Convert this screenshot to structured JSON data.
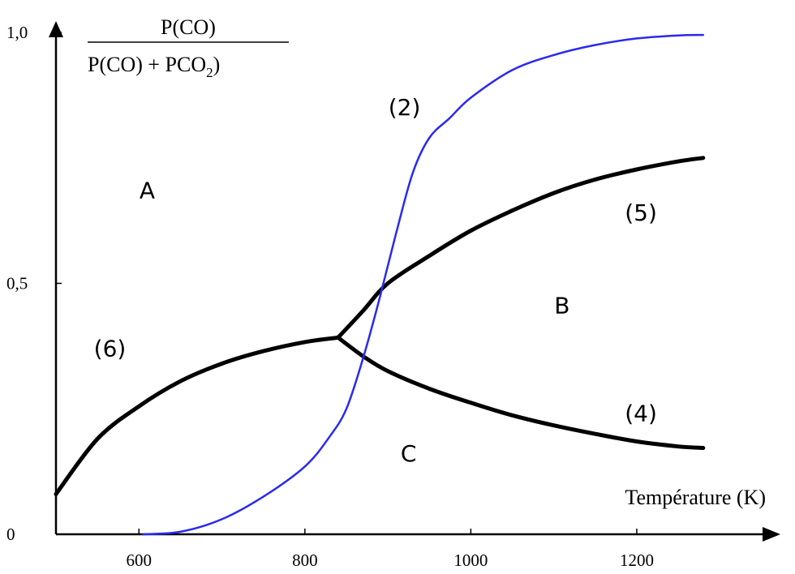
{
  "chart_data": {
    "type": "line",
    "xlabel": "Température (K)",
    "ylabel": {
      "numerator": "P(CO)",
      "denominator_main": "P(CO) + PCO",
      "denominator_sub": "2",
      "denominator_close": ")"
    },
    "xlim": [
      500,
      1290
    ],
    "ylim": [
      0,
      1.0
    ],
    "x_ticks": [
      {
        "value": 600,
        "label": "600"
      },
      {
        "value": 800,
        "label": "800"
      },
      {
        "value": 1000,
        "label": "1000"
      },
      {
        "value": 1200,
        "label": "1200"
      }
    ],
    "y_ticks": [
      {
        "value": 0,
        "label": "0"
      },
      {
        "value": 0.5,
        "label": "0,5"
      },
      {
        "value": 1.0,
        "label": "1,0"
      }
    ],
    "series": [
      {
        "name": "(6)",
        "color": "#000000",
        "points": [
          [
            500,
            0.08
          ],
          [
            550,
            0.19
          ],
          [
            600,
            0.255
          ],
          [
            650,
            0.305
          ],
          [
            700,
            0.34
          ],
          [
            750,
            0.365
          ],
          [
            800,
            0.383
          ],
          [
            840,
            0.392
          ]
        ]
      },
      {
        "name": "(5)",
        "color": "#000000",
        "points": [
          [
            840,
            0.392
          ],
          [
            870,
            0.445
          ],
          [
            900,
            0.5
          ],
          [
            950,
            0.555
          ],
          [
            1000,
            0.605
          ],
          [
            1050,
            0.645
          ],
          [
            1100,
            0.68
          ],
          [
            1150,
            0.707
          ],
          [
            1200,
            0.727
          ],
          [
            1250,
            0.743
          ],
          [
            1280,
            0.75
          ]
        ]
      },
      {
        "name": "(4)",
        "color": "#000000",
        "points": [
          [
            840,
            0.392
          ],
          [
            870,
            0.355
          ],
          [
            900,
            0.325
          ],
          [
            950,
            0.29
          ],
          [
            1000,
            0.262
          ],
          [
            1050,
            0.237
          ],
          [
            1100,
            0.217
          ],
          [
            1150,
            0.2
          ],
          [
            1200,
            0.185
          ],
          [
            1250,
            0.175
          ],
          [
            1280,
            0.172
          ]
        ]
      },
      {
        "name": "(2)",
        "color": "#2a2af0",
        "points": [
          [
            605,
            0.0
          ],
          [
            650,
            0.005
          ],
          [
            700,
            0.03
          ],
          [
            750,
            0.075
          ],
          [
            800,
            0.135
          ],
          [
            830,
            0.195
          ],
          [
            850,
            0.25
          ],
          [
            870,
            0.35
          ],
          [
            890,
            0.47
          ],
          [
            910,
            0.6
          ],
          [
            930,
            0.72
          ],
          [
            950,
            0.79
          ],
          [
            975,
            0.83
          ],
          [
            1000,
            0.87
          ],
          [
            1050,
            0.925
          ],
          [
            1100,
            0.955
          ],
          [
            1150,
            0.975
          ],
          [
            1200,
            0.988
          ],
          [
            1250,
            0.994
          ],
          [
            1280,
            0.995
          ]
        ]
      }
    ],
    "curve_labels": [
      {
        "text": "(2)",
        "x": 920,
        "y": 0.835
      },
      {
        "text": "(5)",
        "x": 1205,
        "y": 0.625
      },
      {
        "text": "(6)",
        "x": 565,
        "y": 0.355
      },
      {
        "text": "(4)",
        "x": 1205,
        "y": 0.225
      }
    ],
    "region_labels": [
      {
        "text": "A",
        "x": 610,
        "y": 0.67
      },
      {
        "text": "B",
        "x": 1110,
        "y": 0.44
      },
      {
        "text": "C",
        "x": 925,
        "y": 0.145
      }
    ]
  }
}
